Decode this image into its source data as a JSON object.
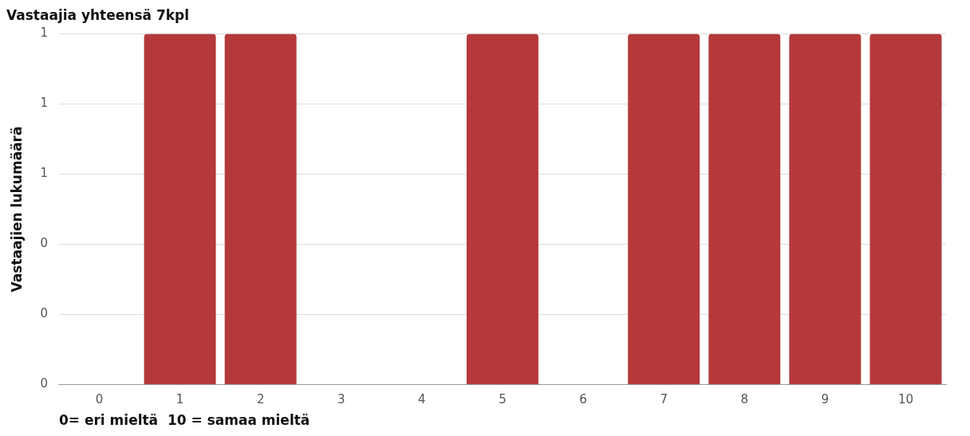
{
  "chart_data": {
    "type": "bar",
    "title": "Vastaajia yhteensä 7kpl",
    "xlabel": "0= eri mieltä  10 = samaa mieltä",
    "ylabel": "Vastaajien lukumäärä",
    "categories": [
      "0",
      "1",
      "2",
      "3",
      "4",
      "5",
      "6",
      "7",
      "8",
      "9",
      "10"
    ],
    "values": [
      0,
      1,
      1,
      0,
      0,
      1,
      0,
      1,
      1,
      1,
      1
    ],
    "color": "#b5393b",
    "ylim": [
      0,
      1
    ],
    "yticks": [
      0,
      {
        "value": 0.2,
        "label": "0"
      },
      {
        "value": 0.4,
        "label": "0"
      },
      {
        "value": 0.6,
        "label": "1"
      },
      {
        "value": 0.8,
        "label": "1"
      },
      1
    ],
    "grid": "y",
    "legend": false
  }
}
